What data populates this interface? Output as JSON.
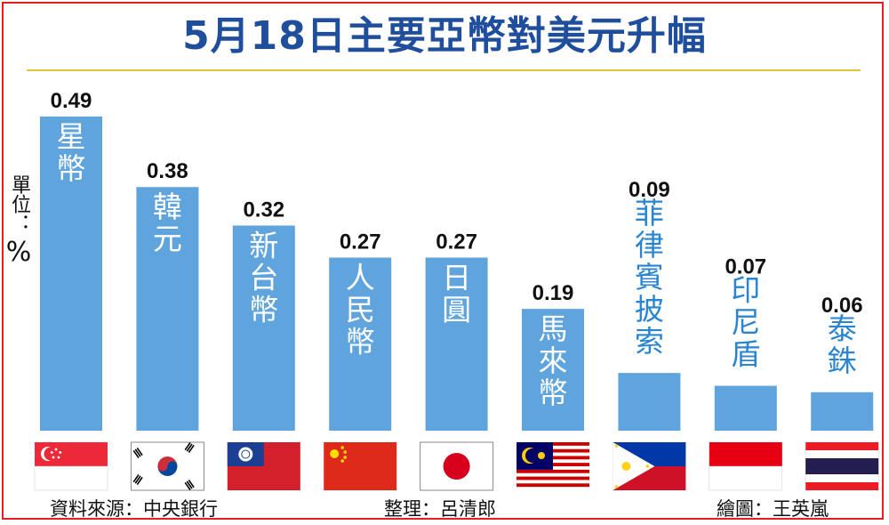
{
  "title": "5月18日主要亞幣對美元升幅",
  "unit_label": "單位：",
  "unit_symbol": "%",
  "colors": {
    "bar": "#5fa4dc",
    "label_on_bar": "#ffffff",
    "label_above_bar": "#2a85d0",
    "title": "#1f4e9c",
    "border": "#e61f25",
    "rule": "#e5c33b"
  },
  "chart_data": {
    "type": "bar",
    "title": "5月18日主要亞幣對美元升幅",
    "ylabel": "單位：%",
    "ylim": [
      0,
      0.49
    ],
    "categories": [
      "星幣",
      "韓元",
      "新台幣",
      "人民幣",
      "日圓",
      "馬來幣",
      "菲律賓披索",
      "印尼盾",
      "泰銖"
    ],
    "values": [
      0.49,
      0.38,
      0.32,
      0.27,
      0.27,
      0.19,
      0.09,
      0.07,
      0.06
    ],
    "value_labels": [
      "0.49",
      "0.38",
      "0.32",
      "0.27",
      "0.27",
      "0.19",
      "0.09",
      "0.07",
      "0.06"
    ],
    "flags": [
      "singapore-flag",
      "south-korea-flag",
      "taiwan-flag",
      "china-flag",
      "japan-flag",
      "malaysia-flag",
      "philippines-flag",
      "indonesia-flag",
      "thailand-flag"
    ]
  },
  "footer": {
    "source": "資料來源：中央銀行",
    "editor": "整理：呂清郎",
    "illustrator": "繪圖：王英嵐"
  }
}
